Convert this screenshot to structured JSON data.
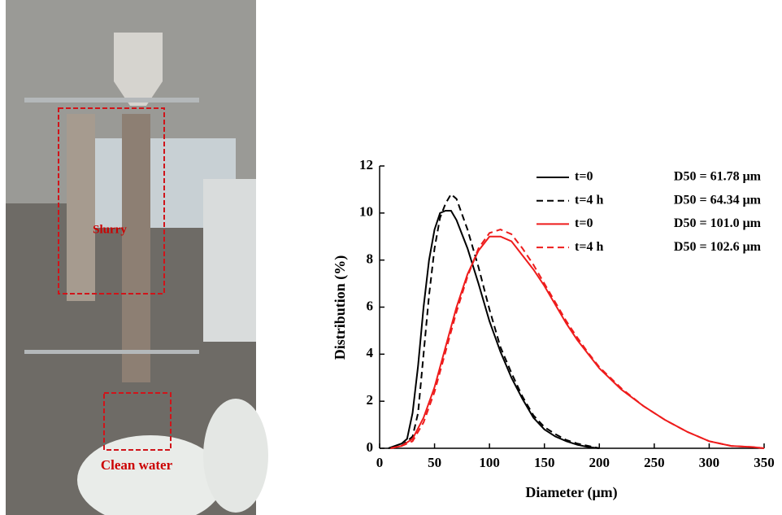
{
  "photo": {
    "labels": [
      "Slurry",
      "Clean water"
    ]
  },
  "chart_data": {
    "type": "line",
    "xlabel": "Diameter (μm)",
    "ylabel": "Distribution (%)",
    "xlim": [
      0,
      350
    ],
    "ylim": [
      0,
      12
    ],
    "xticks": [
      0,
      50,
      100,
      150,
      200,
      250,
      300,
      350
    ],
    "yticks": [
      0,
      2,
      4,
      6,
      8,
      10,
      12
    ],
    "legend": "upper right",
    "series": [
      {
        "name": "t=0",
        "d50": "D50 = 61.78 μm",
        "color": "#000000",
        "dash": false,
        "x": [
          8,
          20,
          25,
          30,
          35,
          40,
          45,
          50,
          55,
          60,
          65,
          70,
          80,
          90,
          100,
          110,
          120,
          130,
          140,
          150,
          160,
          170,
          180,
          190,
          200
        ],
        "values": [
          0,
          0.2,
          0.4,
          1.5,
          3.5,
          6,
          8,
          9.3,
          10,
          10.1,
          10.1,
          9.7,
          8.5,
          7,
          5.4,
          4.1,
          3,
          2.1,
          1.3,
          0.8,
          0.5,
          0.3,
          0.15,
          0.05,
          0
        ]
      },
      {
        "name": "t=4 h",
        "d50": "D50 = 64.34 μm",
        "color": "#000000",
        "dash": true,
        "x": [
          10,
          20,
          30,
          35,
          40,
          45,
          50,
          55,
          60,
          65,
          70,
          80,
          90,
          100,
          110,
          120,
          130,
          140,
          150,
          160,
          170,
          180,
          190,
          200
        ],
        "values": [
          0,
          0.1,
          0.5,
          1.5,
          4,
          6.5,
          8.5,
          9.8,
          10.4,
          10.8,
          10.6,
          9.3,
          7.7,
          5.9,
          4.3,
          3.2,
          2.2,
          1.4,
          0.9,
          0.6,
          0.35,
          0.2,
          0.1,
          0
        ]
      },
      {
        "name": "t=0",
        "d50": "D50 = 101.0 μm",
        "color": "#ee1c1c",
        "dash": false,
        "x": [
          10,
          20,
          30,
          40,
          50,
          60,
          70,
          80,
          90,
          100,
          110,
          120,
          130,
          140,
          150,
          160,
          170,
          180,
          190,
          200,
          220,
          240,
          260,
          280,
          300,
          320,
          340,
          350
        ],
        "values": [
          0,
          0.1,
          0.4,
          1.3,
          2.6,
          4.3,
          6,
          7.4,
          8.4,
          9,
          9,
          8.8,
          8.2,
          7.6,
          6.9,
          6.1,
          5.3,
          4.6,
          4,
          3.4,
          2.5,
          1.8,
          1.2,
          0.7,
          0.3,
          0.1,
          0.05,
          0
        ]
      },
      {
        "name": "t=4 h",
        "d50": "D50 = 102.6 μm",
        "color": "#ee1c1c",
        "dash": true,
        "x": [
          10,
          20,
          30,
          40,
          50,
          60,
          70,
          80,
          90,
          100,
          110,
          120,
          130,
          140,
          150,
          160,
          170,
          180,
          190,
          200,
          220,
          240,
          260,
          280,
          300,
          320,
          340,
          350
        ],
        "values": [
          0,
          0.1,
          0.3,
          1.1,
          2.4,
          4.1,
          5.8,
          7.3,
          8.5,
          9.15,
          9.3,
          9.1,
          8.5,
          7.8,
          7,
          6.2,
          5.4,
          4.7,
          4.05,
          3.45,
          2.55,
          1.8,
          1.2,
          0.7,
          0.3,
          0.1,
          0.05,
          0
        ]
      }
    ]
  }
}
